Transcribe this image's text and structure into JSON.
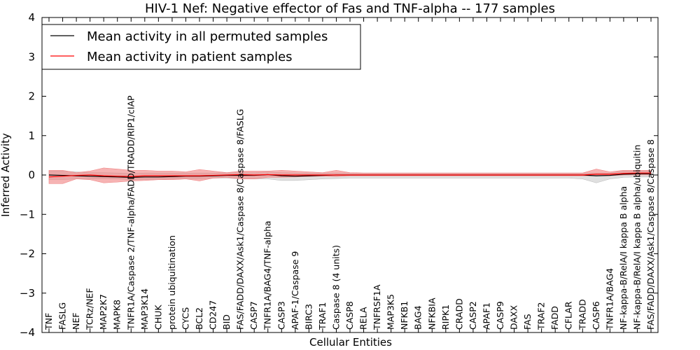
{
  "chart_data": {
    "type": "line",
    "title": "HIV-1 Nef: Negative effector of Fas and TNF-alpha -- 177 samples",
    "xlabel": "Cellular Entities",
    "ylabel": "Inferred Activity",
    "ylim": [
      -4,
      4
    ],
    "yticks": [
      -4,
      -3,
      -2,
      -1,
      0,
      1,
      2,
      3,
      4
    ],
    "ytick_labels": [
      "−4",
      "−3",
      "−2",
      "−1",
      "0",
      "1",
      "2",
      "3",
      "4"
    ],
    "grid": false,
    "legend_position": "top-left",
    "categories": [
      "TNF",
      "FASLG",
      "NEF",
      "TCRz/NEF",
      "MAP2K7",
      "MAPK8",
      "TNFR1A/Caspase 2/TNF-alpha/FADD/TRADD/RIP1/cIAP",
      "MAP3K14",
      "CHUK",
      "protein ubiquitination",
      "CYCS",
      "BCL2",
      "CD247",
      "BID",
      "FAS/FADD/DAXX/Ask1/Caspase 8/Caspase 8/FASLG",
      "CASP7",
      "TNFR1A/BAG4/TNF-alpha",
      "CASP3",
      "APAF-1/Caspase 9",
      "BIRC3",
      "TRAF1",
      "Caspase 8 (4 units)",
      "CASP8",
      "RELA",
      "TNFRSF1A",
      "MAP3K5",
      "NFKB1",
      "BAG4",
      "NFKBIA",
      "RIPK1",
      "CRADD",
      "CASP2",
      "APAF1",
      "CASP9",
      "DAXX",
      "FAS",
      "TRAF2",
      "FADD",
      "CFLAR",
      "TRADD",
      "CASP6",
      "TNFR1A/BAG4",
      "NF-kappa-B/RelA/I kappa B alpha",
      "NF-kappa-B/RelA/I kappa B alpha/ubiquitin",
      "FAS/FADD/DAXX/Ask1/Caspase 8/Caspase 8"
    ],
    "series": [
      {
        "name": "Mean activity in all permuted samples",
        "color": "#000000",
        "band_color": "#bbbbbb",
        "values": [
          0.0,
          -0.01,
          -0.02,
          -0.03,
          -0.04,
          -0.05,
          -0.06,
          -0.05,
          -0.05,
          -0.04,
          -0.03,
          -0.03,
          -0.02,
          -0.01,
          -0.01,
          -0.01,
          0.01,
          -0.02,
          -0.03,
          -0.02,
          -0.01,
          0.0,
          0.0,
          0.0,
          0.0,
          0.0,
          0.0,
          0.0,
          0.0,
          0.0,
          0.0,
          0.0,
          0.0,
          0.0,
          0.0,
          0.0,
          0.0,
          0.0,
          0.0,
          0.0,
          -0.02,
          -0.01,
          0.02,
          0.03,
          0.03
        ],
        "lower": [
          -0.12,
          -0.12,
          -0.1,
          -0.1,
          -0.1,
          -0.1,
          -0.12,
          -0.12,
          -0.12,
          -0.1,
          -0.1,
          -0.1,
          -0.08,
          -0.08,
          -0.1,
          -0.1,
          -0.1,
          -0.14,
          -0.14,
          -0.12,
          -0.1,
          -0.09,
          -0.08,
          -0.08,
          -0.08,
          -0.08,
          -0.08,
          -0.08,
          -0.08,
          -0.08,
          -0.08,
          -0.08,
          -0.08,
          -0.08,
          -0.08,
          -0.08,
          -0.08,
          -0.08,
          -0.08,
          -0.1,
          -0.2,
          -0.1,
          -0.06,
          -0.05,
          -0.05
        ],
        "upper": [
          0.1,
          0.1,
          0.08,
          0.06,
          0.06,
          0.05,
          0.04,
          0.05,
          0.05,
          0.05,
          0.05,
          0.05,
          0.05,
          0.06,
          0.06,
          0.06,
          0.08,
          0.06,
          0.05,
          0.05,
          0.05,
          0.05,
          0.05,
          0.05,
          0.05,
          0.05,
          0.05,
          0.05,
          0.05,
          0.05,
          0.05,
          0.05,
          0.05,
          0.05,
          0.05,
          0.05,
          0.05,
          0.05,
          0.05,
          0.05,
          0.05,
          0.05,
          0.1,
          0.1,
          0.1
        ]
      },
      {
        "name": "Mean activity in patient samples",
        "color": "#ff0000",
        "band_color": "#f08080",
        "values": [
          -0.05,
          -0.03,
          -0.01,
          0.0,
          -0.02,
          -0.03,
          -0.04,
          -0.02,
          -0.02,
          -0.02,
          -0.02,
          -0.02,
          -0.01,
          0.0,
          0.01,
          0.0,
          0.01,
          0.0,
          0.0,
          0.0,
          0.0,
          0.0,
          0.0,
          0.0,
          0.0,
          0.0,
          0.0,
          0.0,
          0.0,
          0.0,
          0.0,
          0.0,
          0.0,
          0.0,
          0.0,
          0.0,
          0.0,
          0.0,
          0.0,
          0.0,
          0.02,
          0.02,
          0.04,
          0.05,
          0.05
        ],
        "lower": [
          -0.22,
          -0.22,
          -0.1,
          -0.12,
          -0.2,
          -0.18,
          -0.15,
          -0.14,
          -0.12,
          -0.12,
          -0.1,
          -0.15,
          -0.08,
          -0.06,
          -0.1,
          -0.1,
          -0.06,
          -0.06,
          -0.05,
          -0.04,
          -0.03,
          -0.04,
          -0.02,
          -0.02,
          -0.02,
          -0.02,
          -0.02,
          -0.02,
          -0.02,
          -0.02,
          -0.02,
          -0.02,
          -0.02,
          -0.02,
          -0.02,
          -0.02,
          -0.02,
          -0.02,
          -0.02,
          -0.02,
          -0.02,
          -0.02,
          0.0,
          0.0,
          0.0
        ],
        "upper": [
          0.12,
          0.12,
          0.06,
          0.1,
          0.18,
          0.15,
          0.12,
          0.12,
          0.1,
          0.1,
          0.08,
          0.14,
          0.1,
          0.06,
          0.1,
          0.1,
          0.1,
          0.12,
          0.1,
          0.08,
          0.06,
          0.12,
          0.06,
          0.05,
          0.05,
          0.05,
          0.05,
          0.05,
          0.05,
          0.05,
          0.05,
          0.05,
          0.05,
          0.05,
          0.05,
          0.05,
          0.05,
          0.05,
          0.05,
          0.05,
          0.15,
          0.08,
          0.12,
          0.12,
          0.12
        ]
      }
    ]
  }
}
